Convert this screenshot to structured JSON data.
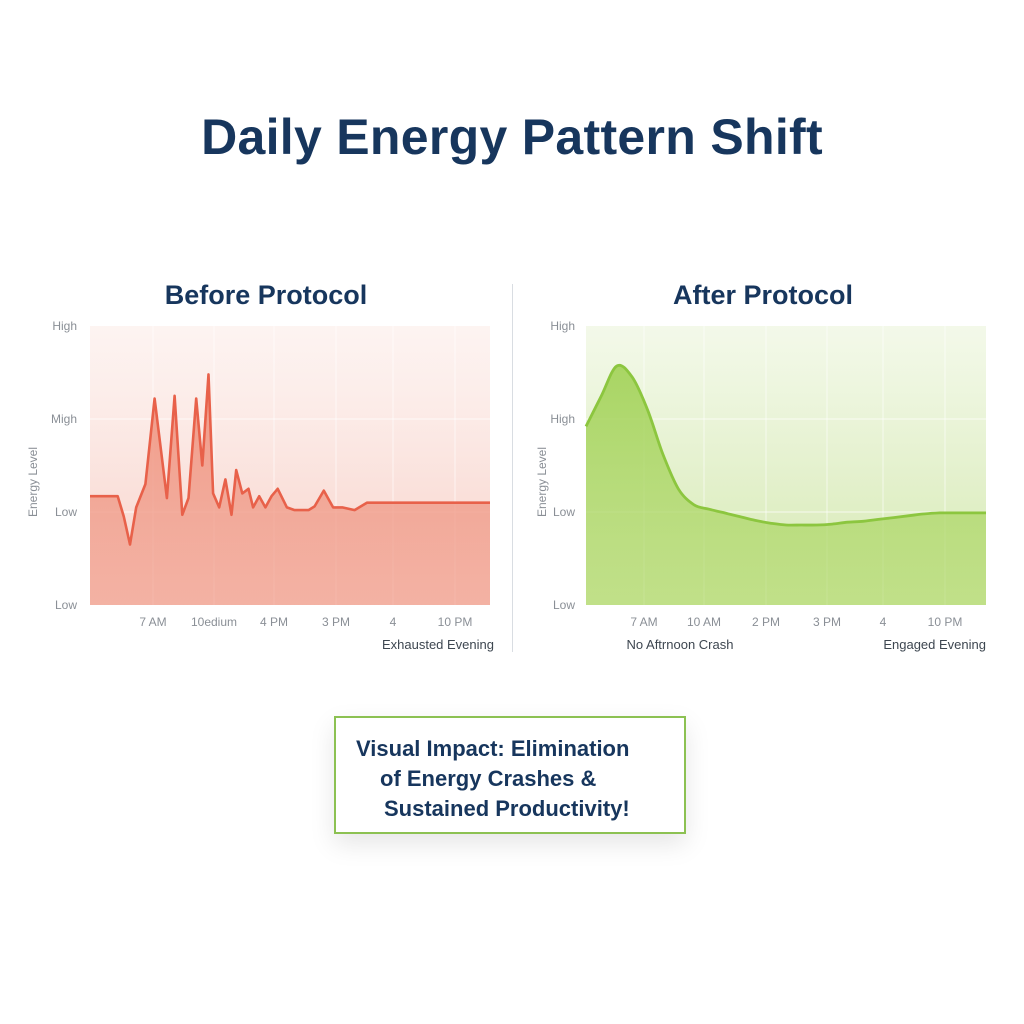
{
  "title": "Daily Energy Pattern Shift",
  "callout": {
    "lines": [
      "Visual Impact: Elimination",
      "of Energy Crashes &",
      "Sustained Productivity!"
    ]
  },
  "colors": {
    "title": "#17365d",
    "before_line": "#e8614a",
    "before_fill": "#f08a76",
    "after_line": "#8cc63f",
    "after_fill": "#a9d45a",
    "callout_border": "#8cc152"
  },
  "chart_data": [
    {
      "type": "area",
      "title": "Before Protocol",
      "ylabel": "Energy Level",
      "y_tick_labels": [
        "High",
        "Migh",
        "Low",
        "Low"
      ],
      "x_tick_labels": [
        "7 AM",
        "10edium",
        "4 PM",
        "3 PM",
        "4",
        "10 PM"
      ],
      "ylim": [
        0,
        3
      ],
      "annotations": [
        "Exhausted Evening"
      ],
      "series": [
        {
          "x": [
            0,
            0.5,
            0.9,
            1.1,
            1.3,
            1.5,
            1.8,
            2.1,
            2.5,
            2.75,
            3.0,
            3.2,
            3.45,
            3.65,
            3.85,
            4.0,
            4.2,
            4.4,
            4.6,
            4.75,
            4.95,
            5.15,
            5.3,
            5.5,
            5.7,
            5.9,
            6.1,
            6.4,
            6.65,
            6.85,
            7.1,
            7.3,
            7.6,
            7.9,
            8.2,
            8.6,
            9.0,
            9.5,
            10.0,
            10.5,
            11.0,
            12.0,
            13.0
          ],
          "y": [
            1.17,
            1.17,
            1.17,
            0.95,
            0.65,
            1.05,
            1.3,
            2.22,
            1.15,
            2.25,
            0.97,
            1.15,
            2.22,
            1.5,
            2.48,
            1.2,
            1.05,
            1.35,
            0.97,
            1.45,
            1.2,
            1.25,
            1.05,
            1.17,
            1.05,
            1.17,
            1.25,
            1.05,
            1.02,
            1.02,
            1.02,
            1.06,
            1.23,
            1.05,
            1.05,
            1.02,
            1.1,
            1.1,
            1.1,
            1.1,
            1.1,
            1.1,
            1.1
          ]
        }
      ]
    },
    {
      "type": "area",
      "title": "After Protocol",
      "ylabel": "Energy Level",
      "y_tick_labels": [
        "High",
        "High",
        "Low",
        "Low"
      ],
      "x_tick_labels": [
        "7 AM",
        "10 AM",
        "2 PM",
        "3 PM",
        "4",
        "10 PM"
      ],
      "ylim": [
        0,
        3
      ],
      "annotations": [
        "No Aftrnoon Crash",
        "Engaged Evening"
      ],
      "series": [
        {
          "x": [
            0,
            0.5,
            1.0,
            1.5,
            2.0,
            2.5,
            3.0,
            3.5,
            4.0,
            4.5,
            5.0,
            5.5,
            6.0,
            6.5,
            7.0,
            7.5,
            8.0,
            8.5,
            9.0,
            9.5,
            10.0,
            10.5,
            11.0,
            11.5,
            12.0,
            12.5,
            13.0
          ],
          "y": [
            1.92,
            2.25,
            2.57,
            2.45,
            2.1,
            1.62,
            1.25,
            1.08,
            1.03,
            0.99,
            0.95,
            0.91,
            0.88,
            0.86,
            0.86,
            0.86,
            0.87,
            0.89,
            0.9,
            0.92,
            0.94,
            0.96,
            0.98,
            0.99,
            0.99,
            0.99,
            0.99
          ]
        }
      ]
    }
  ]
}
